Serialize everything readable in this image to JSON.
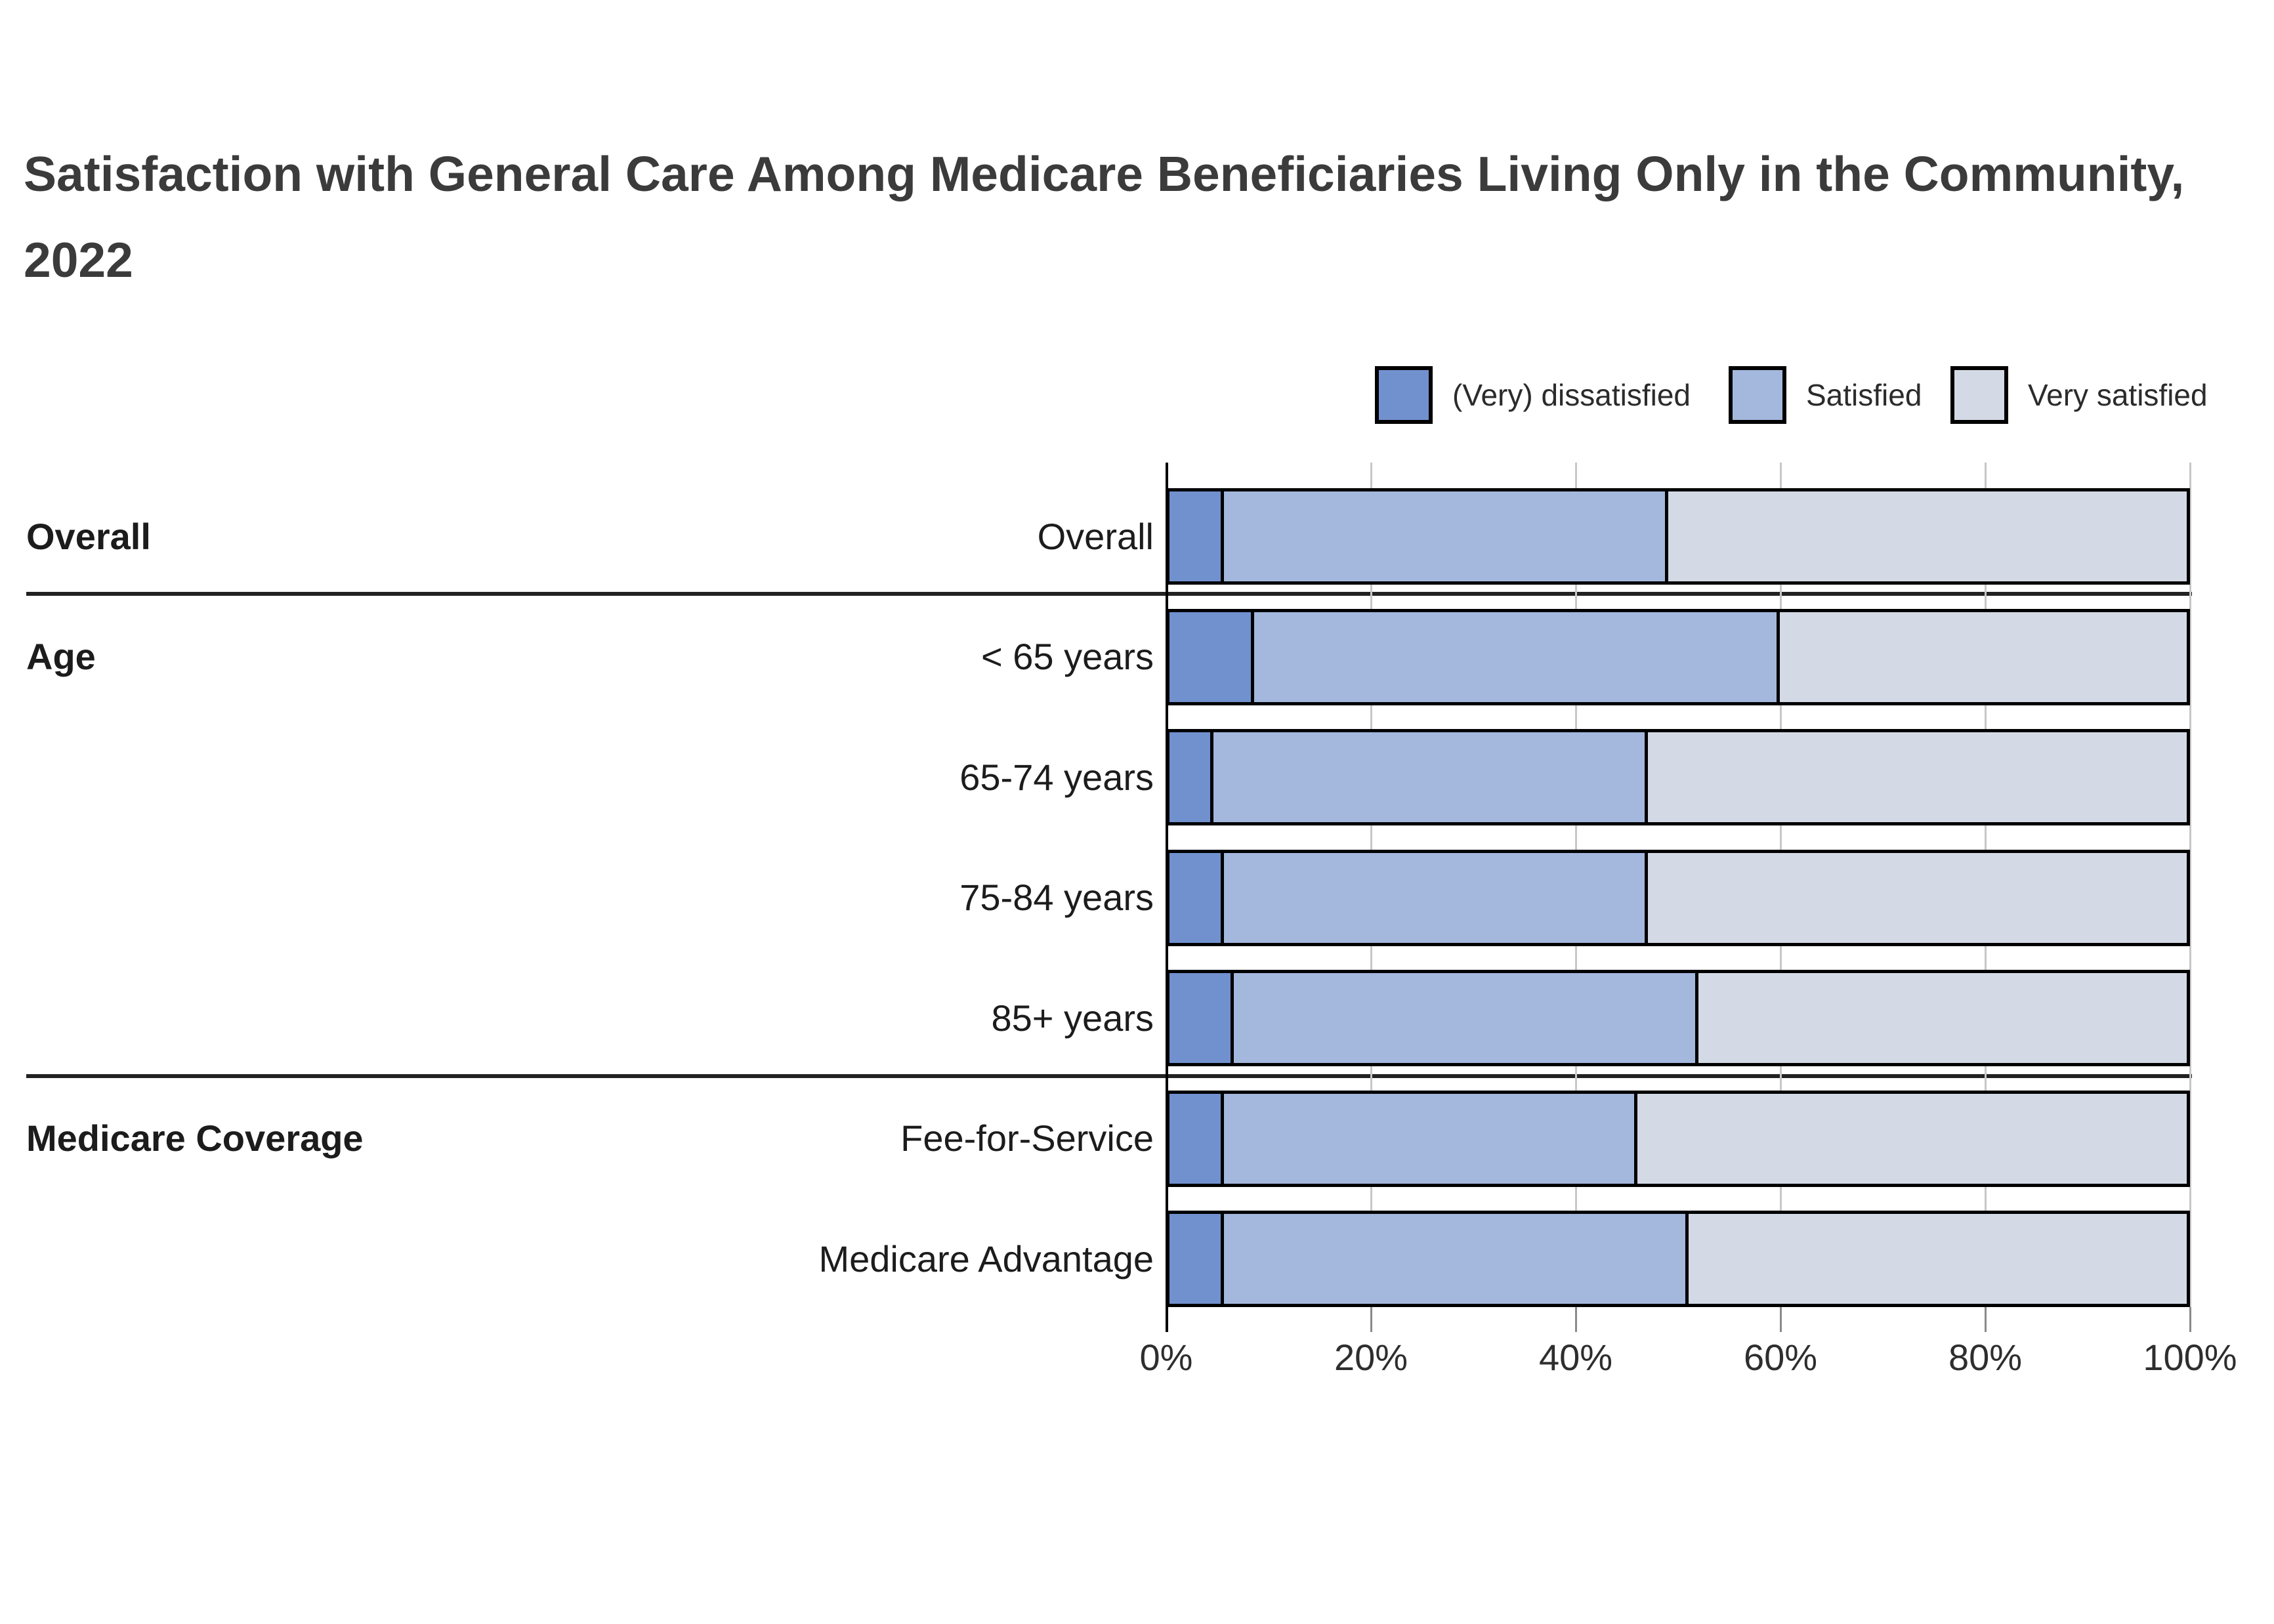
{
  "title": "Satisfaction with General Care Among Medicare Beneficiaries Living Only in the Community, 2022",
  "legend": [
    {
      "label": "(Very) dissatisfied",
      "color": "#7191ce"
    },
    {
      "label": "Satisfied",
      "color": "#a4b8dd"
    },
    {
      "label": "Very satisfied",
      "color": "#d4dae5"
    }
  ],
  "colors": {
    "dissatisfied": "#7191ce",
    "satisfied": "#a4b8dd",
    "very_satisfied": "#d4dae5",
    "bar_border": "#000000",
    "gridline": "#c7c7c7",
    "title_text": "#3b3b3b",
    "label_text": "#1c1c1c"
  },
  "groups": [
    {
      "label": "Overall",
      "rows": [
        "Overall"
      ]
    },
    {
      "label": "Age",
      "rows": [
        "< 65 years",
        "65-74 years",
        "75-84 years",
        "85+ years"
      ]
    },
    {
      "label": "Medicare Coverage",
      "rows": [
        "Fee-for-Service",
        "Medicare Advantage"
      ]
    }
  ],
  "axis": {
    "tick_labels": [
      "0%",
      "20%",
      "40%",
      "60%",
      "80%",
      "100%"
    ],
    "tick_values": [
      0,
      20,
      40,
      60,
      80,
      100
    ]
  },
  "chart_data": {
    "type": "bar",
    "stacked": true,
    "orientation": "horizontal",
    "title": "Satisfaction with General Care Among Medicare Beneficiaries Living Only in the Community, 2022",
    "categories": [
      "Overall",
      "< 65 years",
      "65-74 years",
      "75-84 years",
      "85+ years",
      "Fee-for-Service",
      "Medicare Advantage"
    ],
    "category_groups": [
      "Overall",
      "Age",
      "Age",
      "Age",
      "Age",
      "Medicare Coverage",
      "Medicare Coverage"
    ],
    "series": [
      {
        "name": "(Very) dissatisfied",
        "color": "#7191ce",
        "values": [
          5,
          8,
          4,
          5,
          6,
          5,
          5
        ]
      },
      {
        "name": "Satisfied",
        "color": "#a4b8dd",
        "values": [
          44,
          52,
          43,
          42,
          46,
          41,
          46
        ]
      },
      {
        "name": "Very satisfied",
        "color": "#d4dae5",
        "values": [
          51,
          40,
          53,
          53,
          48,
          54,
          49
        ]
      }
    ],
    "xlabel": "",
    "ylabel": "",
    "xlim": [
      0,
      100
    ],
    "x_tick_labels": [
      "0%",
      "20%",
      "40%",
      "60%",
      "80%",
      "100%"
    ],
    "grid": true,
    "legend_position": "top-right"
  }
}
